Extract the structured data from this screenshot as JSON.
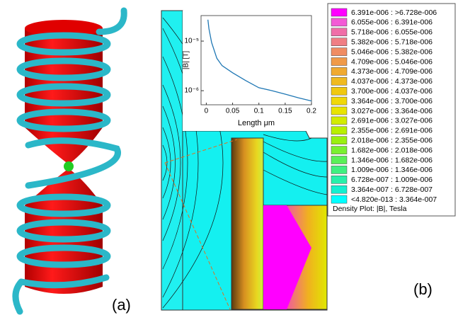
{
  "panel_labels": {
    "a": "(a)",
    "b": "(b)"
  },
  "chart_data": {
    "type": "line",
    "log_y": true,
    "x": [
      0.003,
      0.005,
      0.01,
      0.02,
      0.03,
      0.05,
      0.075,
      0.1,
      0.125,
      0.15,
      0.175,
      0.2
    ],
    "y": [
      2.7e-05,
      1.8e-05,
      9.4e-06,
      4.5e-06,
      3.2e-06,
      2.3e-06,
      1.6e-06,
      1.15e-06,
      1e-06,
      8.5e-07,
      7.2e-07,
      6.2e-07
    ],
    "color": "#1f77b4",
    "xlabel": "Length μm",
    "ylabel": "|B| [T]",
    "xlim": [
      -0.01,
      0.2
    ],
    "ylim": [
      5.2e-07,
      3.27e-05
    ],
    "xticks": [
      0,
      0.05,
      0.1,
      0.15,
      0.2
    ],
    "yticks": [
      {
        "value": 1e-05,
        "label": "10⁻⁵"
      },
      {
        "value": 1e-06,
        "label": "10⁻⁶"
      }
    ]
  },
  "colorbar": {
    "caption": "Density Plot: |B|, Tesla",
    "entries": [
      {
        "label": "6.391e-006 : >6.728e-006",
        "color": "#ff00ff"
      },
      {
        "label": "6.055e-006 : 6.391e-006",
        "color": "#f35ad6"
      },
      {
        "label": "5.718e-006 : 6.055e-006",
        "color": "#f06ea8"
      },
      {
        "label": "5.382e-006 : 5.718e-006",
        "color": "#f07e84"
      },
      {
        "label": "5.046e-006 : 5.382e-006",
        "color": "#f08c62"
      },
      {
        "label": "4.709e-006 : 5.046e-006",
        "color": "#f09a48"
      },
      {
        "label": "4.373e-006 : 4.709e-006",
        "color": "#f0aa30"
      },
      {
        "label": "4.037e-006 : 4.373e-006",
        "color": "#f0ba20"
      },
      {
        "label": "3.700e-006 : 4.037e-006",
        "color": "#f0c810"
      },
      {
        "label": "3.364e-006 : 3.700e-006",
        "color": "#f0d808"
      },
      {
        "label": "3.027e-006 : 3.364e-006",
        "color": "#e8e400"
      },
      {
        "label": "2.691e-006 : 3.027e-006",
        "color": "#d2ec00"
      },
      {
        "label": "2.355e-006 : 2.691e-006",
        "color": "#b8f000"
      },
      {
        "label": "2.018e-006 : 2.355e-006",
        "color": "#9af010"
      },
      {
        "label": "1.682e-006 : 2.018e-006",
        "color": "#7af030"
      },
      {
        "label": "1.346e-006 : 1.682e-006",
        "color": "#5af058"
      },
      {
        "label": "1.009e-006 : 1.346e-006",
        "color": "#40f080"
      },
      {
        "label": "6.728e-007 : 1.009e-006",
        "color": "#28f0aa"
      },
      {
        "label": "3.364e-007 : 6.728e-007",
        "color": "#14f0d0"
      },
      {
        "label": "<4.820e-013 : 3.364e-007",
        "color": "#00ffff"
      }
    ]
  }
}
